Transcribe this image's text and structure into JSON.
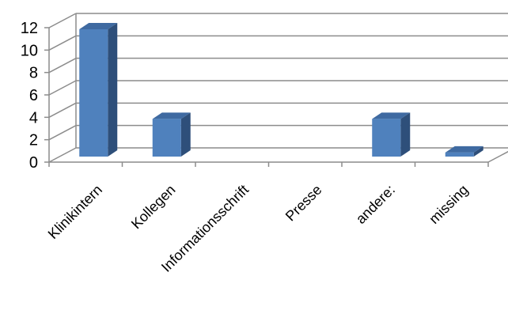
{
  "chart_data": {
    "type": "bar",
    "style": "3d-column",
    "categories": [
      "Klinikintern",
      "Kollegen",
      "Informationsschrift",
      "Presse",
      "andere:",
      "missing"
    ],
    "values": [
      12,
      4,
      0,
      0,
      4,
      1
    ],
    "title": "",
    "xlabel": "",
    "ylabel": "",
    "ylim": [
      0,
      12
    ],
    "yticks": [
      "0",
      "2",
      "4",
      "6",
      "8",
      "10",
      "12"
    ],
    "grid": true,
    "legend": "none",
    "colors": {
      "bar_front": "#4f81bd",
      "bar_side": "#2e4f7a",
      "bar_top": "#3f6aa1",
      "grid": "#8c8c8c"
    }
  }
}
